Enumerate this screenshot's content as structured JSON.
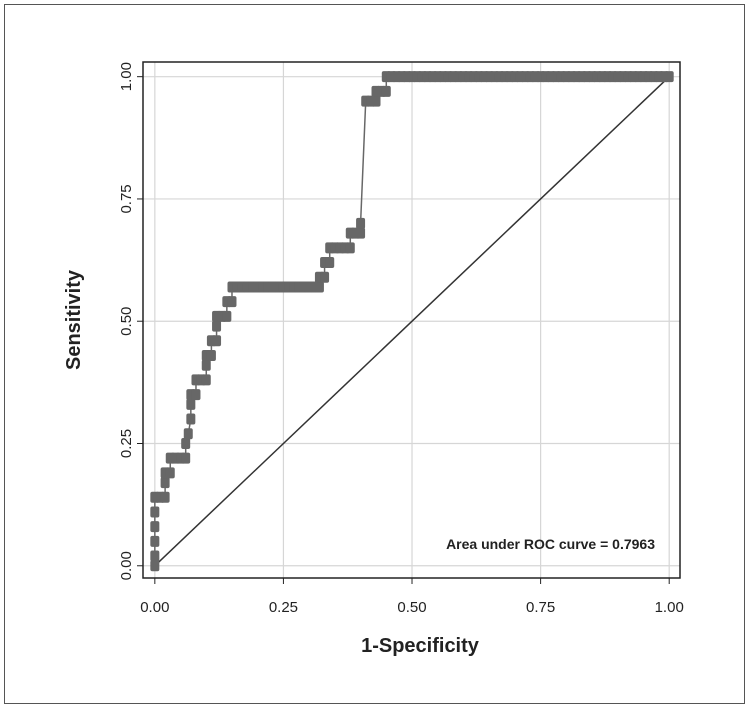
{
  "chart_data": {
    "type": "line",
    "x_label": "1-Specificity",
    "y_label": "Sensitivity",
    "annotation": "Area under ROC curve = 0.7963",
    "x": [
      0,
      0,
      0,
      0,
      0,
      0,
      0.01,
      0.02,
      0.02,
      0.02,
      0.03,
      0.03,
      0.04,
      0.05,
      0.06,
      0.06,
      0.065,
      0.07,
      0.07,
      0.07,
      0.08,
      0.08,
      0.09,
      0.1,
      0.1,
      0.1,
      0.11,
      0.11,
      0.12,
      0.12,
      0.12,
      0.13,
      0.14,
      0.14,
      0.15,
      0.15,
      0.16,
      0.17,
      0.18,
      0.19,
      0.2,
      0.21,
      0.22,
      0.23,
      0.24,
      0.25,
      0.26,
      0.27,
      0.28,
      0.29,
      0.3,
      0.31,
      0.32,
      0.32,
      0.33,
      0.33,
      0.34,
      0.34,
      0.35,
      0.36,
      0.37,
      0.38,
      0.38,
      0.39,
      0.4,
      0.4,
      0.41,
      0.42,
      0.43,
      0.43,
      0.44,
      0.45,
      0.45,
      0.46,
      0.47,
      0.48,
      0.49,
      0.5,
      0.51,
      0.52,
      0.53,
      0.54,
      0.55,
      0.56,
      0.57,
      0.58,
      0.59,
      0.6,
      0.61,
      0.62,
      0.63,
      0.64,
      0.65,
      0.66,
      0.67,
      0.68,
      0.69,
      0.7,
      0.71,
      0.72,
      0.73,
      0.74,
      0.75,
      0.76,
      0.77,
      0.78,
      0.79,
      0.8,
      0.81,
      0.82,
      0.83,
      0.84,
      0.85,
      0.86,
      0.87,
      0.88,
      0.89,
      0.9,
      0.91,
      0.92,
      0.93,
      0.94,
      0.95,
      0.96,
      0.97,
      0.98,
      0.99,
      1
    ],
    "series": [
      {
        "color": "#676767",
        "values": [
          0,
          0.02,
          0.05,
          0.08,
          0.11,
          0.14,
          0.14,
          0.14,
          0.17,
          0.19,
          0.19,
          0.22,
          0.22,
          0.22,
          0.22,
          0.25,
          0.27,
          0.3,
          0.33,
          0.35,
          0.35,
          0.38,
          0.38,
          0.38,
          0.41,
          0.43,
          0.43,
          0.46,
          0.46,
          0.49,
          0.51,
          0.51,
          0.51,
          0.54,
          0.54,
          0.57,
          0.57,
          0.57,
          0.57,
          0.57,
          0.57,
          0.57,
          0.57,
          0.57,
          0.57,
          0.57,
          0.57,
          0.57,
          0.57,
          0.57,
          0.57,
          0.57,
          0.57,
          0.59,
          0.59,
          0.62,
          0.62,
          0.65,
          0.65,
          0.65,
          0.65,
          0.65,
          0.68,
          0.68,
          0.68,
          0.7,
          0.95,
          0.95,
          0.95,
          0.97,
          0.97,
          0.97,
          1,
          1,
          1,
          1,
          1,
          1,
          1,
          1,
          1,
          1,
          1,
          1,
          1,
          1,
          1,
          1,
          1,
          1,
          1,
          1,
          1,
          1,
          1,
          1,
          1,
          1,
          1,
          1,
          1,
          1,
          1,
          1,
          1,
          1,
          1,
          1,
          1,
          1,
          1,
          1,
          1,
          1,
          1,
          1,
          1,
          1,
          1,
          1,
          1,
          1,
          1,
          1,
          1,
          1,
          1,
          1
        ]
      }
    ],
    "reference_line": {
      "color": "#333333",
      "x": [
        0,
        1
      ],
      "y": [
        0,
        1
      ]
    },
    "xlim": [
      -0.023,
      1.021
    ],
    "ylim": [
      -0.025,
      1.03
    ],
    "xticks": [
      {
        "value": 0,
        "label": "0.00"
      },
      {
        "value": 0.25,
        "label": "0.25"
      },
      {
        "value": 0.5,
        "label": "0.50"
      },
      {
        "value": 0.75,
        "label": "0.75"
      },
      {
        "value": 1,
        "label": "1.00"
      }
    ],
    "yticks": [
      {
        "value": 0,
        "label": "0.00"
      },
      {
        "value": 0.25,
        "label": "0.25"
      },
      {
        "value": 0.5,
        "label": "0.50"
      },
      {
        "value": 0.75,
        "label": "0.75"
      },
      {
        "value": 1,
        "label": "1.00"
      }
    ],
    "grid": true
  }
}
